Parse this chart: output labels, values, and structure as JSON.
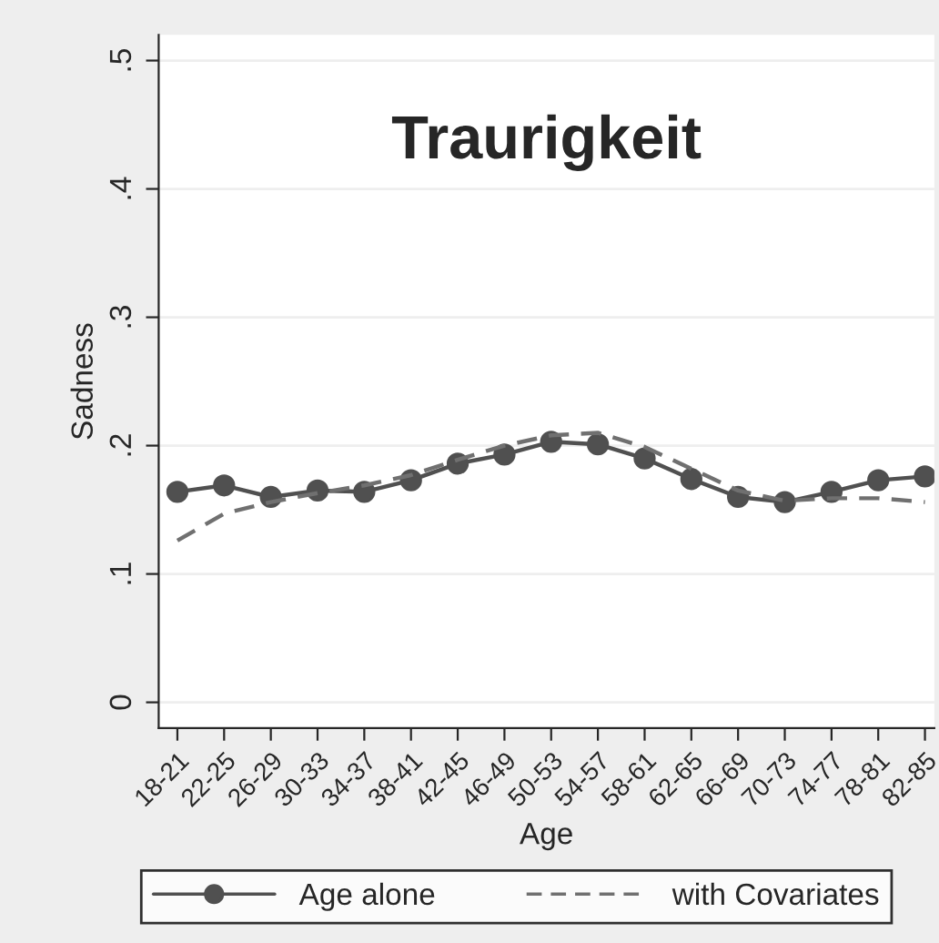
{
  "chart_data": {
    "type": "line",
    "title": "Traurigkeit",
    "xlabel": "Age",
    "ylabel": "Sadness",
    "categories": [
      "18-21",
      "22-25",
      "26-29",
      "30-33",
      "34-37",
      "38-41",
      "42-45",
      "46-49",
      "50-53",
      "54-57",
      "58-61",
      "62-65",
      "66-69",
      "70-73",
      "74-77",
      "78-81",
      "82-85"
    ],
    "series": [
      {
        "name": "Age alone",
        "color": "#505050",
        "marker": "circle",
        "line_style": "solid",
        "values": [
          0.164,
          0.169,
          0.16,
          0.165,
          0.164,
          0.173,
          0.186,
          0.193,
          0.203,
          0.201,
          0.19,
          0.174,
          0.16,
          0.156,
          0.164,
          0.173,
          0.176
        ]
      },
      {
        "name": "with Covariates",
        "color": "#707070",
        "marker": "none",
        "line_style": "dashed",
        "values": [
          0.126,
          0.147,
          0.156,
          0.163,
          0.169,
          0.177,
          0.189,
          0.2,
          0.208,
          0.21,
          0.199,
          0.182,
          0.165,
          0.157,
          0.159,
          0.159,
          0.156
        ]
      }
    ],
    "ylim": [
      -0.02,
      0.52
    ],
    "yticks": [
      {
        "value": 0,
        "label": "0"
      },
      {
        "value": 0.1,
        "label": ".1"
      },
      {
        "value": 0.2,
        "label": ".2"
      },
      {
        "value": 0.3,
        "label": ".3"
      },
      {
        "value": 0.4,
        "label": ".4"
      },
      {
        "value": 0.5,
        "label": ".5"
      }
    ],
    "grid": "y",
    "legend": "bottom"
  }
}
